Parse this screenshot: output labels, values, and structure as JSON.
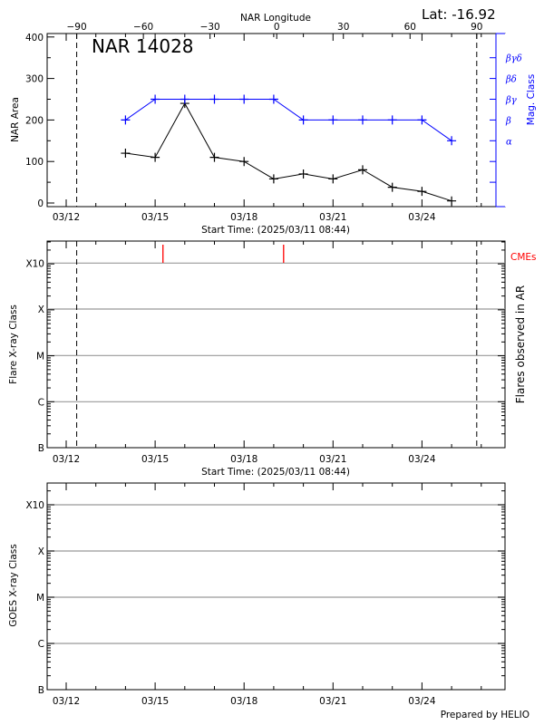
{
  "header": {
    "latitude_label": "Lat: -16.92",
    "footer": "Prepared by HELIO"
  },
  "colors": {
    "area": "#000000",
    "mag_class": "#0000ff",
    "cme": "#ff0000",
    "grid": "#999999"
  },
  "chart_data": [
    {
      "type": "line",
      "title": "NAR 14028",
      "xlabel": "Start Time: (2025/03/11 08:44)",
      "x_tick_labels": [
        "03/12",
        "03/15",
        "03/18",
        "03/21",
        "03/24"
      ],
      "top_axis_label": "NAR Longitude",
      "top_tick_labels": [
        "-90",
        "-60",
        "-30",
        "0",
        "30",
        "60",
        "90"
      ],
      "ylabel": "NAR Area",
      "ylim": [
        0,
        400
      ],
      "y_tick_labels": [
        "0",
        "100",
        "200",
        "300",
        "400"
      ],
      "y2label": "Mag. Class",
      "y2_tick_labels": [
        "α",
        "β",
        "βγ",
        "βδ",
        "βγδ"
      ],
      "dashed_longitudes": [
        -90,
        90
      ],
      "x": [
        "03/14",
        "03/15",
        "03/16",
        "03/17",
        "03/18",
        "03/19",
        "03/20",
        "03/21",
        "03/22",
        "03/23",
        "03/24",
        "03/25"
      ],
      "series": [
        {
          "axis": "left",
          "values": [
            120,
            110,
            240,
            110,
            100,
            58,
            70,
            58,
            80,
            38,
            28,
            5
          ]
        },
        {
          "axis": "right",
          "values": [
            "β",
            "βγ",
            "βγ",
            "βγ",
            "βγ",
            "βγ",
            "β",
            "β",
            "β",
            "β",
            "β",
            "α"
          ]
        }
      ]
    },
    {
      "type": "scatter",
      "xlabel": "Start Time: (2025/03/11 08:44)",
      "x_tick_labels": [
        "03/12",
        "03/15",
        "03/18",
        "03/21",
        "03/24"
      ],
      "ylabel": "Flare X-ray Class",
      "y2label": "Flares observed in AR",
      "y_tick_labels": [
        "B",
        "C",
        "M",
        "X",
        "X10"
      ],
      "y_scale": "log",
      "grid": true,
      "cme_label": "CMEs",
      "cme_times": [
        "03/15 06:20",
        "03/19 08:00"
      ],
      "flares": []
    },
    {
      "type": "line",
      "ylabel": "GOES X-ray Class",
      "x_tick_labels": [
        "03/12",
        "03/15",
        "03/18",
        "03/21",
        "03/24"
      ],
      "y_tick_labels": [
        "B",
        "C",
        "M",
        "X",
        "X10"
      ],
      "y_scale": "log",
      "grid": true,
      "series": []
    }
  ]
}
